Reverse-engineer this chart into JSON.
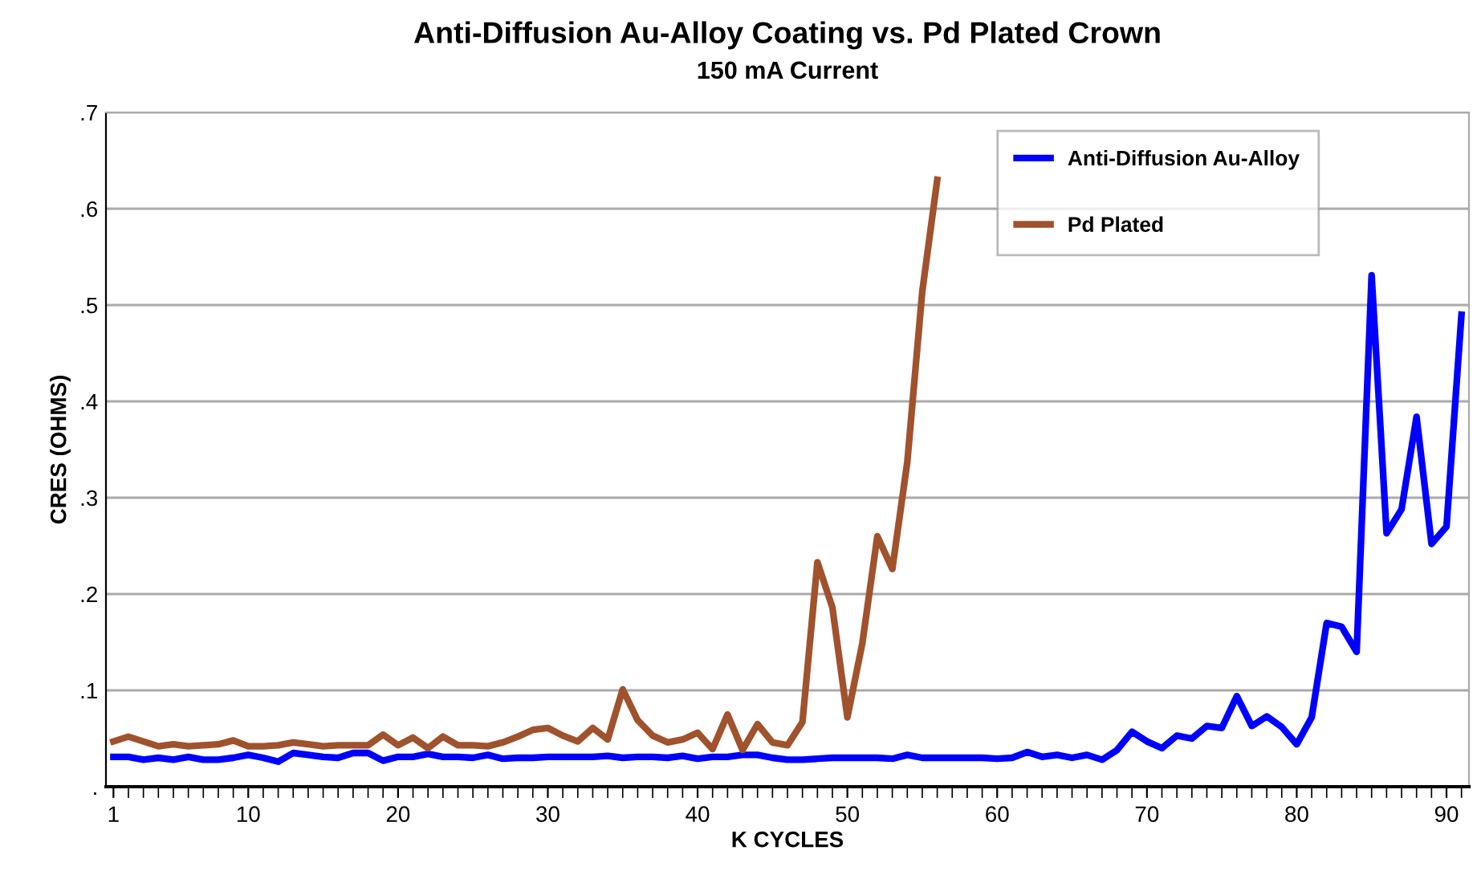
{
  "chart_data": {
    "type": "line",
    "title": "Anti-Diffusion Au-Alloy Coating vs. Pd Plated Crown",
    "subtitle": "150 mA Current",
    "xlabel": "K CYCLES",
    "ylabel": "CRES (OHMS)",
    "x": [
      1,
      2,
      3,
      4,
      5,
      6,
      7,
      8,
      9,
      10,
      11,
      12,
      13,
      14,
      15,
      16,
      17,
      18,
      19,
      20,
      21,
      22,
      23,
      24,
      25,
      26,
      27,
      28,
      29,
      30,
      31,
      32,
      33,
      34,
      35,
      36,
      37,
      38,
      39,
      40,
      41,
      42,
      43,
      44,
      45,
      46,
      47,
      48,
      49,
      50,
      51,
      52,
      53,
      54,
      55,
      56,
      57,
      58,
      59,
      60,
      61,
      62,
      63,
      64,
      65,
      66,
      67,
      68,
      69,
      70,
      71,
      72,
      73,
      74,
      75,
      76,
      77,
      78,
      79,
      80,
      81,
      82,
      83,
      84,
      85,
      86,
      87,
      88,
      89,
      90,
      91
    ],
    "series": [
      {
        "name": "Anti-Diffusion Au-Alloy",
        "color": "#0000ff",
        "values": [
          0.031,
          0.031,
          0.028,
          0.03,
          0.028,
          0.031,
          0.028,
          0.028,
          0.03,
          0.033,
          0.03,
          0.026,
          0.035,
          0.033,
          0.031,
          0.03,
          0.035,
          0.035,
          0.027,
          0.031,
          0.031,
          0.034,
          0.031,
          0.031,
          0.03,
          0.033,
          0.029,
          0.03,
          0.03,
          0.031,
          0.031,
          0.031,
          0.031,
          0.032,
          0.03,
          0.031,
          0.031,
          0.03,
          0.032,
          0.029,
          0.031,
          0.031,
          0.033,
          0.033,
          0.03,
          0.028,
          0.028,
          0.029,
          0.03,
          0.03,
          0.03,
          0.03,
          0.029,
          0.033,
          0.03,
          0.03,
          0.03,
          0.03,
          0.03,
          0.029,
          0.03,
          0.036,
          0.031,
          0.033,
          0.03,
          0.033,
          0.028,
          0.038,
          0.057,
          0.047,
          0.04,
          0.053,
          0.05,
          0.063,
          0.061,
          0.094,
          0.063,
          0.073,
          0.062,
          0.044,
          0.072,
          0.17,
          0.166,
          0.14,
          0.531,
          0.263,
          0.288,
          0.384,
          0.252,
          0.27,
          0.49
        ]
      },
      {
        "name": "Pd Plated",
        "color": "#a0522d",
        "values": [
          0.047,
          0.052,
          0.047,
          0.042,
          0.044,
          0.042,
          0.043,
          0.044,
          0.048,
          0.042,
          0.042,
          0.043,
          0.046,
          0.044,
          0.042,
          0.043,
          0.043,
          0.043,
          0.054,
          0.043,
          0.051,
          0.04,
          0.052,
          0.043,
          0.043,
          0.042,
          0.046,
          0.052,
          0.059,
          0.061,
          0.053,
          0.047,
          0.061,
          0.049,
          0.101,
          0.069,
          0.053,
          0.046,
          0.049,
          0.056,
          0.039,
          0.075,
          0.038,
          0.065,
          0.046,
          0.043,
          0.067,
          0.233,
          0.186,
          0.072,
          0.149,
          0.26,
          0.226,
          0.337,
          0.514,
          0.63,
          null,
          null,
          null,
          null,
          null,
          null,
          null,
          null,
          null,
          null,
          null,
          null,
          null,
          null,
          null,
          null,
          null,
          null,
          null,
          null,
          null,
          null,
          null,
          null,
          null,
          null,
          null,
          null,
          null,
          null,
          null,
          null,
          null,
          null,
          null
        ]
      }
    ],
    "xlim": [
      0.5,
      91.5
    ],
    "xticks": [
      1,
      10,
      20,
      30,
      40,
      50,
      60,
      70,
      80,
      90
    ],
    "ylim": [
      0,
      0.7
    ],
    "yticks": [
      {
        "value": 0,
        "label": "."
      },
      {
        "value": 0.1,
        "label": ".1"
      },
      {
        "value": 0.2,
        "label": ".2"
      },
      {
        "value": 0.3,
        "label": ".3"
      },
      {
        "value": 0.4,
        "label": ".4"
      },
      {
        "value": 0.5,
        "label": ".5"
      },
      {
        "value": 0.6,
        "label": ".6"
      },
      {
        "value": 0.7,
        "label": ".7"
      }
    ],
    "grid": "y",
    "legend": "top right",
    "marker": "none",
    "line_style": "solid"
  }
}
